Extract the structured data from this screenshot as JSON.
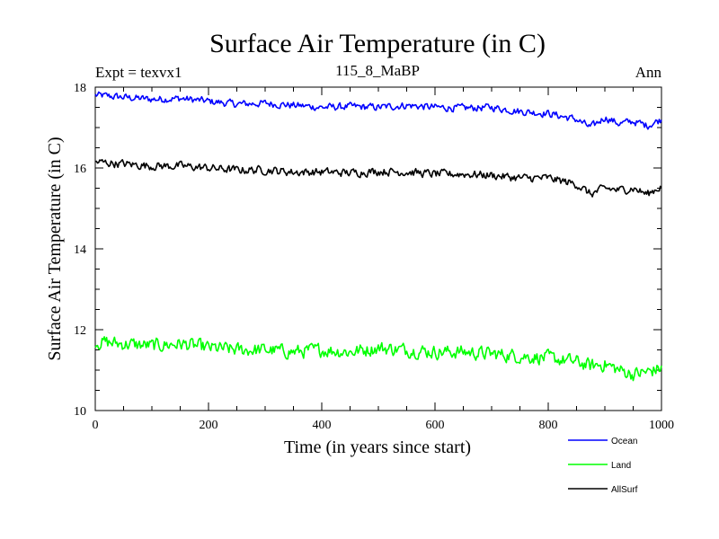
{
  "chart_data": {
    "type": "line",
    "title": "Surface Air Temperature (in C)",
    "subtitle_left": "Expt = texvx1",
    "subtitle_center": "115_8_MaBP",
    "subtitle_right": "Ann",
    "xlabel": "Time (in years since start)",
    "ylabel": "Surface Air Temperature (in C)",
    "xlim": [
      0,
      1000
    ],
    "ylim": [
      10,
      18
    ],
    "xticks": [
      0,
      200,
      400,
      600,
      800,
      1000
    ],
    "yticks": [
      10,
      12,
      14,
      16,
      18
    ],
    "x_minor_step": 50,
    "y_minor_step": 0.5,
    "grid": false,
    "legend_position": "bottom-right",
    "x": [
      0,
      50,
      100,
      150,
      200,
      250,
      300,
      350,
      400,
      450,
      500,
      550,
      600,
      650,
      700,
      750,
      800,
      850,
      875,
      900,
      925,
      950,
      975,
      1000
    ],
    "series": [
      {
        "name": "Ocean",
        "color": "#0000ff",
        "noise": 0.08,
        "values": [
          17.8,
          17.75,
          17.7,
          17.72,
          17.65,
          17.58,
          17.6,
          17.55,
          17.5,
          17.52,
          17.5,
          17.55,
          17.5,
          17.48,
          17.5,
          17.4,
          17.35,
          17.2,
          17.0,
          17.25,
          17.1,
          17.15,
          17.05,
          17.2
        ]
      },
      {
        "name": "Land",
        "color": "#00ff00",
        "noise": 0.15,
        "values": [
          11.7,
          11.65,
          11.6,
          11.65,
          11.55,
          11.5,
          11.5,
          11.45,
          11.5,
          11.45,
          11.55,
          11.5,
          11.45,
          11.45,
          11.4,
          11.35,
          11.3,
          11.2,
          11.1,
          11.15,
          11.0,
          10.9,
          10.95,
          11.05
        ]
      },
      {
        "name": "AllSurf",
        "color": "#000000",
        "noise": 0.09,
        "values": [
          16.15,
          16.1,
          16.05,
          16.05,
          16.0,
          15.95,
          15.95,
          15.9,
          15.9,
          15.88,
          15.92,
          15.9,
          15.85,
          15.85,
          15.82,
          15.75,
          15.75,
          15.6,
          15.35,
          15.5,
          15.45,
          15.5,
          15.35,
          15.55
        ]
      }
    ]
  }
}
